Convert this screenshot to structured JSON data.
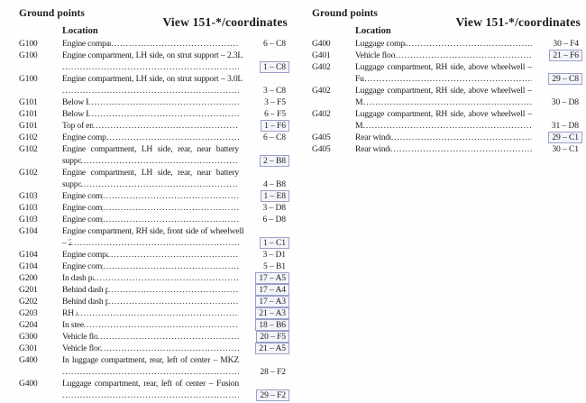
{
  "colors": {
    "link_box_border": "#9aa0c9",
    "text": "#1d1d1f",
    "page_background": "#fefefe"
  },
  "columns": [
    {
      "section_title": "Ground points",
      "view_title": "View 151-*/coordinates",
      "location_label": "Location",
      "rows": [
        {
          "id": "G100",
          "lines": [
            "Engine compartment, LH side, near BJB – 3.5L"
          ],
          "coord": "6 – C8",
          "linked": false
        },
        {
          "id": "G100",
          "lines": [
            "Engine compartment, LH side, on strut support – 2.3L",
            ""
          ],
          "coord": "1 – C8",
          "linked": true
        },
        {
          "id": "G100",
          "lines": [
            "Engine compartment, LH side, on strut support – 3.0L",
            ""
          ],
          "coord": "3 – C8",
          "linked": false
        },
        {
          "id": "G101",
          "lines": [
            "Below Battery – 3.0L"
          ],
          "coord": "3 – F5",
          "linked": false
        },
        {
          "id": "G101",
          "lines": [
            "Below Battery – 3.5L"
          ],
          "coord": "6 – F5",
          "linked": false
        },
        {
          "id": "G101",
          "lines": [
            "Top of engine, rear – 2.3L"
          ],
          "coord": "1 – F6",
          "linked": true
        },
        {
          "id": "G102",
          "lines": [
            "Engine compartment, LH side rear – 3.5L"
          ],
          "coord": "6 – C8",
          "linked": false
        },
        {
          "id": "G102",
          "lines": [
            "Engine compartment, LH side, rear, near battery",
            "support – 2.3L"
          ],
          "coord": "2 – B8",
          "linked": true
        },
        {
          "id": "G102",
          "lines": [
            "Engine compartment, LH side, rear, near battery",
            "support – 3.0L"
          ],
          "coord": "4 – B8",
          "linked": false
        },
        {
          "id": "G103",
          "lines": [
            "Engine compartment, LH side – 2.3L"
          ],
          "coord": "1 – E8",
          "linked": true
        },
        {
          "id": "G103",
          "lines": [
            "Engine compartment, LH side – 3.0L"
          ],
          "coord": "3 – D8",
          "linked": false
        },
        {
          "id": "G103",
          "lines": [
            "Engine compartment, LH side – 3.5L"
          ],
          "coord": "6 – D8",
          "linked": false
        },
        {
          "id": "G104",
          "lines": [
            "Engine compartment, RH side, front side of wheelwell",
            "– 2.3L"
          ],
          "coord": "1 – C1",
          "linked": true
        },
        {
          "id": "G104",
          "lines": [
            "Engine compartment, RH side, front – 3.0L"
          ],
          "coord": "3 – D1",
          "linked": false
        },
        {
          "id": "G104",
          "lines": [
            "Engine compartment, RH side – 3.5L"
          ],
          "coord": "5 – B1",
          "linked": false
        },
        {
          "id": "G200",
          "lines": [
            "In dash panel, behind radio"
          ],
          "coord": "17 – A5",
          "linked": true
        },
        {
          "id": "G201",
          "lines": [
            "Behind dash panel, right of steering column"
          ],
          "coord": "17 – A4",
          "linked": true
        },
        {
          "id": "G202",
          "lines": [
            "Behind dash panel, under instrument cluster"
          ],
          "coord": "17 – A3",
          "linked": true
        },
        {
          "id": "G203",
          "lines": [
            "RH A-pillar"
          ],
          "coord": "21 – A3",
          "linked": true
        },
        {
          "id": "G204",
          "lines": [
            "In steering wheel"
          ],
          "coord": "18 – B6",
          "linked": true
        },
        {
          "id": "G300",
          "lines": [
            "Vehicle floor, under driver seat"
          ],
          "coord": "20 – F5",
          "linked": true
        },
        {
          "id": "G301",
          "lines": [
            "Vehicle floor, under passenger seat"
          ],
          "coord": "21 – A5",
          "linked": true
        },
        {
          "id": "G400",
          "lines": [
            "In luggage compartment, rear, left of center – MKZ",
            ""
          ],
          "coord": "28 – F2",
          "linked": false
        },
        {
          "id": "G400",
          "lines": [
            "Luggage compartment, rear, left of center – Fusion",
            ""
          ],
          "coord": "29 – F2",
          "linked": true
        }
      ]
    },
    {
      "section_title": "Ground points",
      "view_title": "View 151-*/coordinates",
      "location_label": "Location",
      "rows": [
        {
          "id": "G400",
          "lines": [
            "Luggage compartment, rear, left of center – Milan"
          ],
          "coord": "30 – F4",
          "linked": false
        },
        {
          "id": "G401",
          "lines": [
            "Vehicle floor, center, under rear seats"
          ],
          "coord": "21 – F6",
          "linked": true
        },
        {
          "id": "G402",
          "lines": [
            "Luggage compartment, RH side, above wheelwell –",
            "Fusion"
          ],
          "coord": "29 – C8",
          "linked": true
        },
        {
          "id": "G402",
          "lines": [
            "Luggage compartment, RH side, above wheelwell –",
            "Milan"
          ],
          "coord": "30 – D8",
          "linked": false
        },
        {
          "id": "G402",
          "lines": [
            "Luggage compartment, RH side, above wheelwell –",
            "MKZ"
          ],
          "coord": "31 – D8",
          "linked": false
        },
        {
          "id": "G405",
          "lines": [
            "Rear window, LH side – Fusion"
          ],
          "coord": "29 – C1",
          "linked": true
        },
        {
          "id": "G405",
          "lines": [
            "Rear window, LH side – Milan"
          ],
          "coord": "30 – C1",
          "linked": false
        }
      ]
    }
  ]
}
